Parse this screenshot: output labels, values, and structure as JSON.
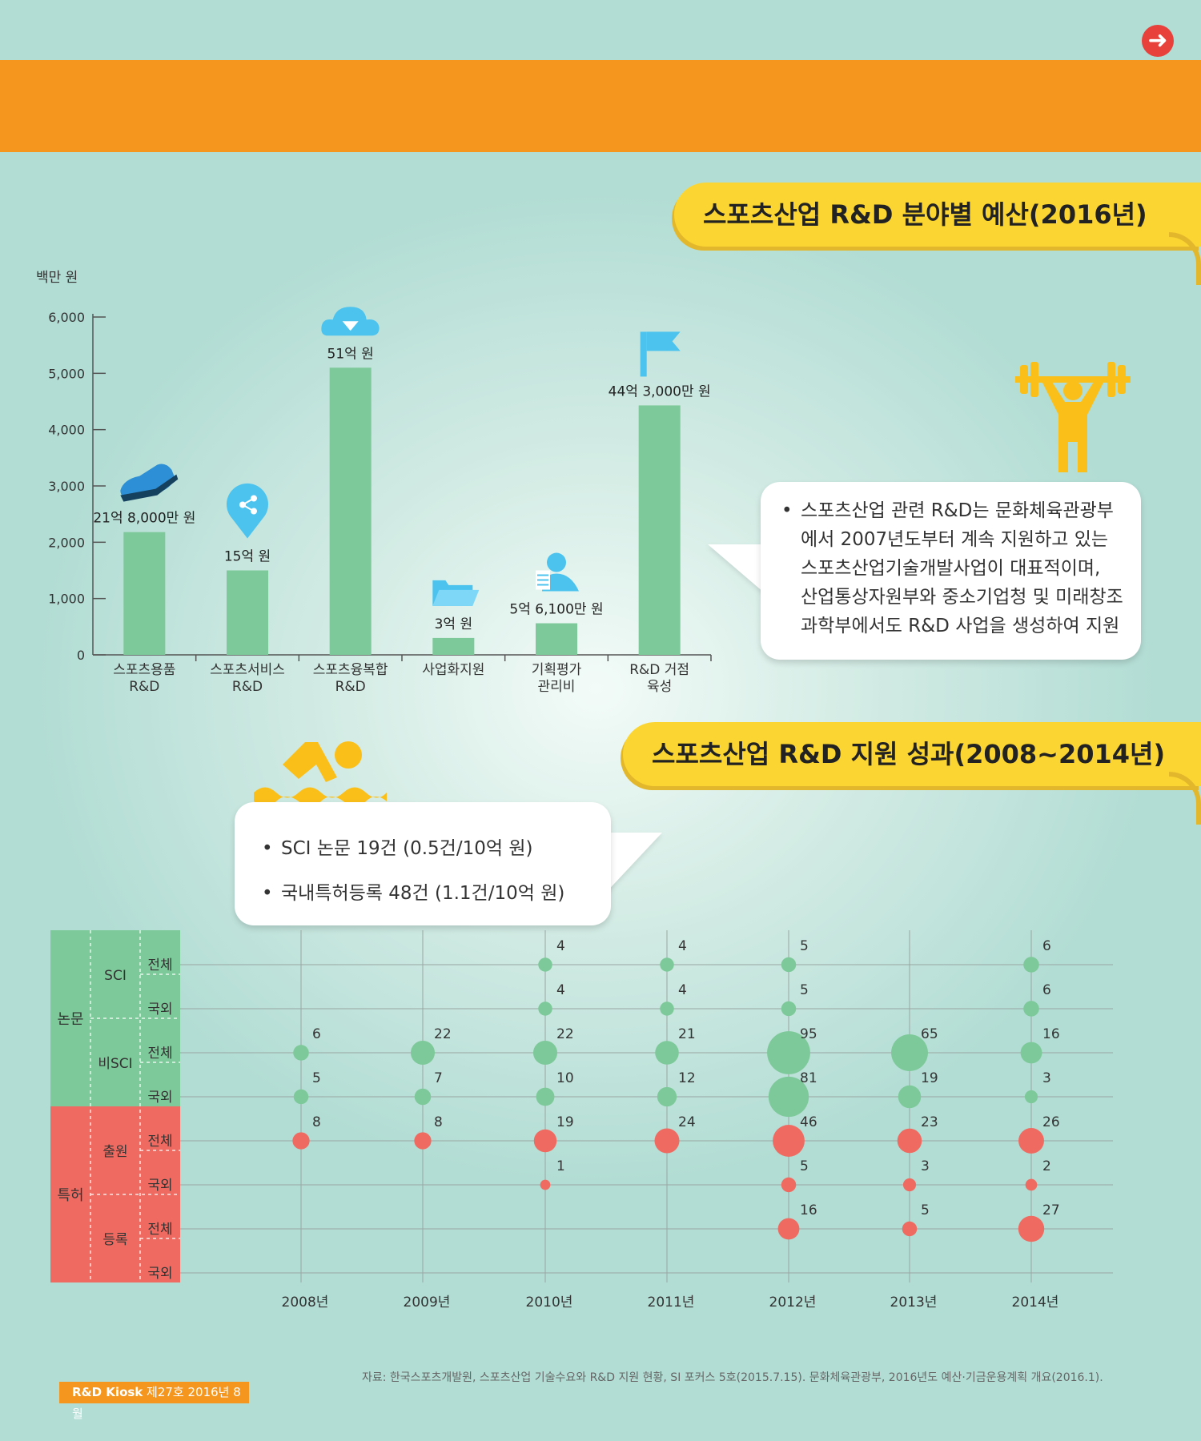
{
  "header": {
    "next_icon": "arrow-right-icon",
    "accent_color": "#f5961e",
    "next_color": "#e8403a"
  },
  "section1": {
    "title": "스포츠산업 R&D 분야별 예산(2016년)"
  },
  "section2": {
    "title": "스포츠산업 R&D 지원 성과(2008~2014년)"
  },
  "bubble1": {
    "lines": [
      "스포츠산업 관련 R&D는 문화체육관광부",
      "에서 2007년도부터 계속 지원하고 있는",
      "스포츠산업기술개발사업이 대표적이며,",
      "산업통상자원부와 중소기업청 및 미래창조",
      "과학부에서도 R&D 사업을 생성하여 지원"
    ]
  },
  "bubble2": {
    "items": [
      "SCI 논문 19건 (0.5건/10억 원)",
      "국내특허등록 48건 (1.1건/10억 원)"
    ]
  },
  "footer": {
    "source": "자료: 한국스포츠개발원, 스포츠산업 기술수요와 R&D 지원 현황, SI 포커스 5호(2015.7.15). 문화체육관광부, 2016년도 예산·기금운용계획 개요(2016.1).",
    "kiosk_bold": "R&D Kiosk",
    "kiosk_rest": " 제27호 2016년 8월"
  },
  "chart_data": [
    {
      "type": "bar",
      "title": "스포츠산업 R&D 분야별 예산(2016년)",
      "ylabel": "백만 원",
      "ylim": [
        0,
        6000
      ],
      "yticks": [
        "0",
        "1,000",
        "2,000",
        "3,000",
        "4,000",
        "5,000",
        "6,000"
      ],
      "categories": [
        {
          "line1": "스포츠용품",
          "line2": "R&D"
        },
        {
          "line1": "스포츠서비스",
          "line2": "R&D"
        },
        {
          "line1": "스포츠융복합",
          "line2": "R&D"
        },
        {
          "line1": "사업화지원",
          "line2": ""
        },
        {
          "line1": "기획평가",
          "line2": "관리비"
        },
        {
          "line1": "R&D 거점",
          "line2": "육성"
        }
      ],
      "values": [
        2180,
        1500,
        5100,
        300,
        561,
        4430
      ],
      "data_labels": [
        "21억 8,000만 원",
        "15억 원",
        "51억 원",
        "3억 원",
        "5억 6,100만 원",
        "44억 3,000만 원"
      ],
      "icons": [
        "sneaker-icon",
        "share-pin-icon",
        "cloud-download-icon",
        "folder-icon",
        "user-document-icon",
        "flag-icon"
      ],
      "bar_color": "#7dc999"
    },
    {
      "type": "scatter",
      "title": "스포츠산업 R&D 지원 성과(2008~2014년)",
      "x": [
        "2008년",
        "2009년",
        "2010년",
        "2011년",
        "2012년",
        "2013년",
        "2014년"
      ],
      "groups": [
        {
          "name": "논문",
          "subgroups": [
            {
              "name": "SCI",
              "rows": [
                "전체",
                "국외"
              ]
            },
            {
              "name": "비SCI",
              "rows": [
                "전체",
                "국외"
              ]
            }
          ],
          "color": "#7dc999"
        },
        {
          "name": "특허",
          "subgroups": [
            {
              "name": "출원",
              "rows": [
                "전체",
                "국외"
              ]
            },
            {
              "name": "등록",
              "rows": [
                "전체",
                "국외"
              ]
            }
          ],
          "color": "#ef6b61"
        }
      ],
      "series": [
        {
          "group": "논문",
          "sub": "SCI",
          "row": "전체",
          "values": [
            null,
            null,
            4,
            4,
            5,
            null,
            6
          ]
        },
        {
          "group": "논문",
          "sub": "SCI",
          "row": "국외",
          "values": [
            null,
            null,
            4,
            4,
            5,
            null,
            6
          ]
        },
        {
          "group": "논문",
          "sub": "비SCI",
          "row": "전체",
          "values": [
            6,
            22,
            22,
            21,
            95,
            65,
            16
          ]
        },
        {
          "group": "논문",
          "sub": "비SCI",
          "row": "국외",
          "values": [
            5,
            7,
            10,
            12,
            81,
            19,
            3
          ]
        },
        {
          "group": "특허",
          "sub": "출원",
          "row": "전체",
          "values": [
            8,
            8,
            19,
            24,
            46,
            23,
            26
          ]
        },
        {
          "group": "특허",
          "sub": "출원",
          "row": "국외",
          "values": [
            null,
            null,
            1,
            null,
            5,
            3,
            2
          ]
        },
        {
          "group": "특허",
          "sub": "등록",
          "row": "전체",
          "values": [
            null,
            null,
            null,
            null,
            16,
            5,
            27
          ]
        },
        {
          "group": "특허",
          "sub": "등록",
          "row": "국외",
          "values": [
            null,
            null,
            null,
            null,
            null,
            null,
            null
          ]
        }
      ]
    }
  ],
  "decor": {
    "weightlifter_icon": "weightlifter-icon",
    "swimmer_icon": "swimmer-icon",
    "icon_color": "#fbbf1a",
    "icon_blue": "#4cc3ef"
  }
}
